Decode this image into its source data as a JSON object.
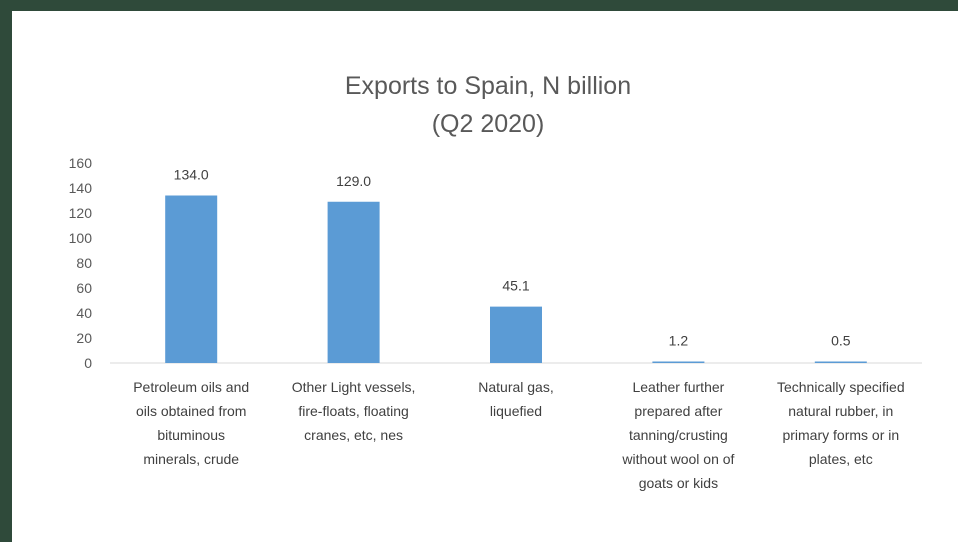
{
  "chart_data": {
    "type": "bar",
    "title": "Exports to Spain,  N billion",
    "subtitle": "(Q2 2020)",
    "categories": [
      [
        "Petroleum oils and",
        "oils obtained from",
        "bituminous",
        "minerals, crude"
      ],
      [
        "Other Light vessels,",
        "fire-floats, floating",
        "cranes, etc, nes"
      ],
      [
        "Natural gas,",
        "liquefied"
      ],
      [
        "Leather further",
        "prepared after",
        "tanning/crusting",
        "without wool on of",
        "goats or kids"
      ],
      [
        "Technically specified",
        "natural rubber, in",
        "primary forms or in",
        "plates, etc"
      ]
    ],
    "values": [
      134.0,
      129.0,
      45.1,
      1.2,
      0.5
    ],
    "data_labels": [
      "134.0",
      "129.0",
      "45.1",
      "1.2",
      "0.5"
    ],
    "ylim": [
      0,
      160
    ],
    "yticks": [
      "0",
      "20",
      "40",
      "60",
      "80",
      "100",
      "120",
      "140",
      "160"
    ],
    "grid": false,
    "legend": "none",
    "bar_color": "#5b9bd5"
  }
}
